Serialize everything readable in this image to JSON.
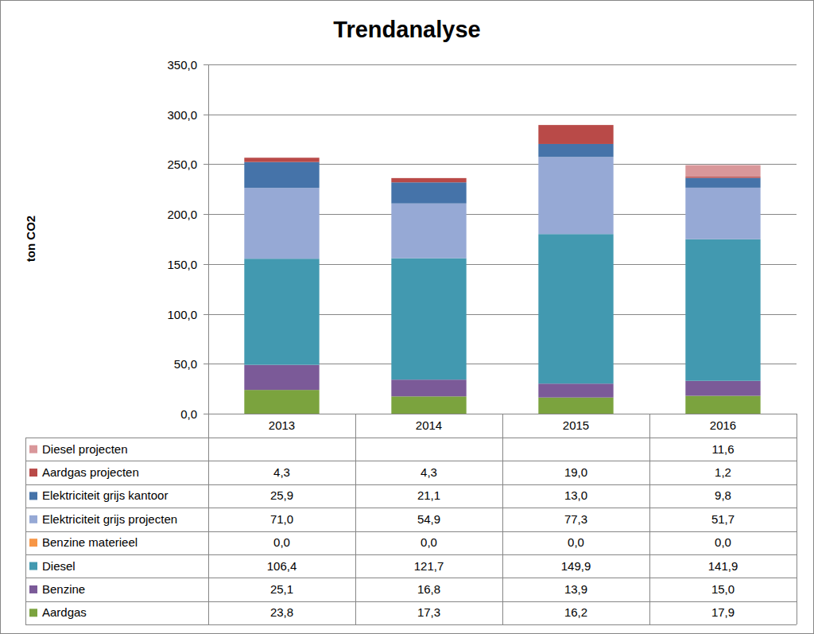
{
  "chart_data": {
    "type": "bar",
    "title": "Trendanalyse",
    "y_label": "ton CO2",
    "stacked": true,
    "grid": true,
    "categories": [
      "2013",
      "2014",
      "2015",
      "2016"
    ],
    "ylim": [
      0,
      350
    ],
    "yticks": [
      {
        "value": 0,
        "label": "0,0"
      },
      {
        "value": 50,
        "label": "50,0"
      },
      {
        "value": 100,
        "label": "100,0"
      },
      {
        "value": 150,
        "label": "150,0"
      },
      {
        "value": 200,
        "label": "200,0"
      },
      {
        "value": 250,
        "label": "250,0"
      },
      {
        "value": 300,
        "label": "300,0"
      },
      {
        "value": 350,
        "label": "350,0"
      }
    ],
    "series": [
      {
        "name": "Aardgas",
        "color": "#7ba33e",
        "values": [
          23.8,
          17.3,
          16.2,
          17.9
        ],
        "value_labels": [
          "23,8",
          "17,3",
          "16,2",
          "17,9"
        ]
      },
      {
        "name": "Benzine",
        "color": "#7b5a98",
        "values": [
          25.1,
          16.8,
          13.9,
          15.0
        ],
        "value_labels": [
          "25,1",
          "16,8",
          "13,9",
          "15,0"
        ]
      },
      {
        "name": "Diesel",
        "color": "#4299b0",
        "values": [
          106.4,
          121.7,
          149.9,
          141.9
        ],
        "value_labels": [
          "106,4",
          "121,7",
          "149,9",
          "141,9"
        ]
      },
      {
        "name": "Benzine materieel",
        "color": "#f79646",
        "values": [
          0.0,
          0.0,
          0.0,
          0.0
        ],
        "value_labels": [
          "0,0",
          "0,0",
          "0,0",
          "0,0"
        ]
      },
      {
        "name": "Elektriciteit grijs projecten",
        "color": "#96a9d5",
        "values": [
          71.0,
          54.9,
          77.3,
          51.7
        ],
        "value_labels": [
          "71,0",
          "54,9",
          "77,3",
          "51,7"
        ]
      },
      {
        "name": "Elektriciteit grijs kantoor",
        "color": "#4573a9",
        "values": [
          25.9,
          21.1,
          13.0,
          9.8
        ],
        "value_labels": [
          "25,9",
          "21,1",
          "13,0",
          "9,8"
        ]
      },
      {
        "name": "Aardgas projecten",
        "color": "#b94a48",
        "values": [
          4.3,
          4.3,
          19.0,
          1.2
        ],
        "value_labels": [
          "4,3",
          "4,3",
          "19,0",
          "1,2"
        ]
      },
      {
        "name": "Diesel projecten",
        "color": "#d9979a",
        "values": [
          null,
          null,
          null,
          11.6
        ],
        "value_labels": [
          null,
          null,
          null,
          "11,6"
        ]
      }
    ]
  }
}
